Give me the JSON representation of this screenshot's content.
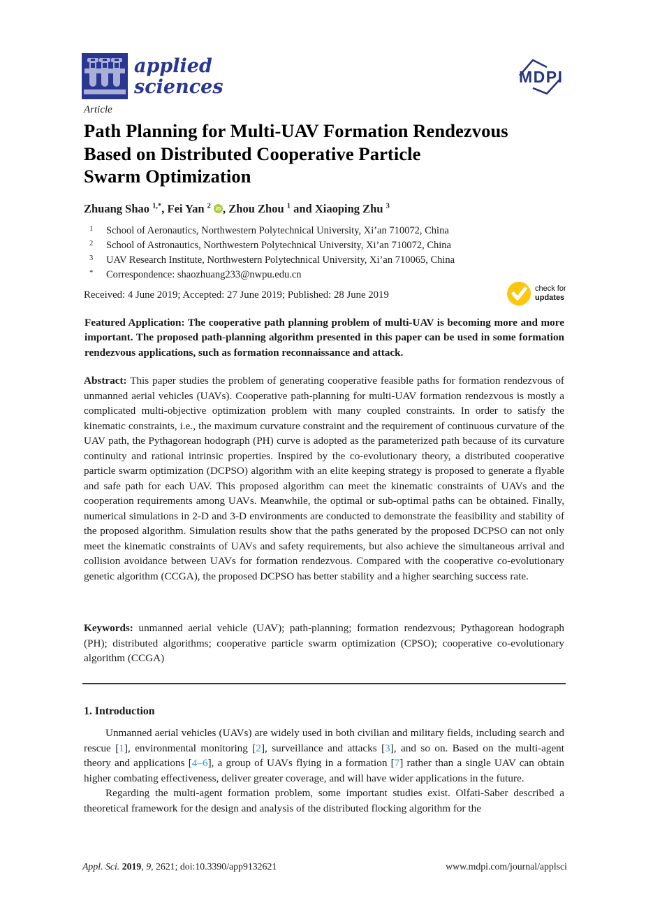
{
  "colors": {
    "brand_blue": "#2A3791",
    "logo_tube": "#A9AFD9",
    "mdpi_navy": "#26357F",
    "orcid_green": "#A6CE39",
    "badge_yellow": "#FDC70F",
    "citation_blue": "#2D9FD8"
  },
  "header": {
    "journal_name_line1": "applied",
    "journal_name_line2": "sciences",
    "mdpi_logo_text": "MDPI"
  },
  "meta": {
    "article_type": "Article",
    "title_lines": [
      "Path Planning for Multi-UAV Formation Rendezvous",
      "Based on Distributed Cooperative Particle",
      "Swarm Optimization"
    ],
    "authors": [
      {
        "name": "Zhuang Shao",
        "sup": "1,*",
        "orcid": false,
        "sep_after": ", "
      },
      {
        "name": "Fei Yan",
        "sup": "2",
        "orcid": true,
        "sep_after": ", "
      },
      {
        "name": "Zhou Zhou",
        "sup": "1",
        "orcid": false,
        "sep_after": " and "
      },
      {
        "name": "Xiaoping Zhu",
        "sup": "3",
        "orcid": false,
        "sep_after": ""
      }
    ],
    "orcid_icon_text": "iD",
    "affiliations": [
      {
        "sup": "1",
        "text": "School of Aeronautics, Northwestern Polytechnical University, Xi’an 710072, China",
        "email": ""
      },
      {
        "sup": "2",
        "text": "School of Astronautics, Northwestern Polytechnical University, Xi’an 710072, China",
        "email": ""
      },
      {
        "sup": "3",
        "text": "UAV Research Institute, Northwestern Polytechnical University, Xi’an 710065, China",
        "email": ""
      },
      {
        "sup": "*",
        "text": "Correspondence: ",
        "email": "shaozhuang233@nwpu.edu.cn"
      }
    ],
    "dates": "Received: 4 June 2019; Accepted: 27 June 2019; Published: 28 June 2019",
    "check_badge": {
      "line1": "check for",
      "line2": "updates"
    }
  },
  "featured": {
    "label": "Featured Application:",
    "text": "The cooperative path planning problem of multi-UAV is becoming more and more important. The proposed path-planning algorithm presented in this paper can be used in some formation rendezvous applications, such as formation reconnaissance and attack."
  },
  "abstract": {
    "label": "Abstract:",
    "text": "This paper studies the problem of generating cooperative feasible paths for formation rendezvous of unmanned aerial vehicles (UAVs). Cooperative path-planning for multi-UAV formation rendezvous is mostly a complicated multi-objective optimization problem with many coupled constraints. In order to satisfy the kinematic constraints, i.e., the maximum curvature constraint and the requirement of continuous curvature of the UAV path, the Pythagorean hodograph (PH) curve is adopted as the parameterized path because of its curvature continuity and rational intrinsic properties. Inspired by the co-evolutionary theory, a distributed cooperative particle swarm optimization (DCPSO) algorithm with an elite keeping strategy is proposed to generate a flyable and safe path for each UAV. This proposed algorithm can meet the kinematic constraints of UAVs and the cooperation requirements among UAVs. Meanwhile, the optimal or sub-optimal paths can be obtained. Finally, numerical simulations in 2-D and 3-D environments are conducted to demonstrate the feasibility and stability of the proposed algorithm. Simulation results show that the paths generated by the proposed DCPSO can not only meet the kinematic constraints of UAVs and safety requirements, but also achieve the simultaneous arrival and collision avoidance between UAVs for formation rendezvous. Compared with the cooperative co-evolutionary genetic algorithm (CCGA), the proposed DCPSO has better stability and a higher searching success rate."
  },
  "keywords": {
    "label": "Keywords:",
    "text": "unmanned aerial vehicle (UAV); path-planning; formation rendezvous; Pythagorean hodograph (PH); distributed algorithms; cooperative particle swarm optimization (CPSO); cooperative co-evolutionary algorithm (CCGA)"
  },
  "sections": [
    {
      "heading": "1. Introduction",
      "paragraphs": [
        {
          "segments": [
            {
              "t": "Unmanned aerial vehicles (UAVs) are widely used in both civilian and military fields, including search and rescue ["
            },
            {
              "t": "1",
              "link": true
            },
            {
              "t": "], environmental monitoring ["
            },
            {
              "t": "2",
              "link": true
            },
            {
              "t": "], surveillance and attacks ["
            },
            {
              "t": "3",
              "link": true
            },
            {
              "t": "], and so on. Based on the multi-agent theory and applications ["
            },
            {
              "t": "4–6",
              "link": true
            },
            {
              "t": "], a group of UAVs flying in a formation ["
            },
            {
              "t": "7",
              "link": true
            },
            {
              "t": "] rather than a single UAV can obtain higher combating effectiveness, deliver greater coverage, and will have wider applications in the future."
            }
          ]
        },
        {
          "segments": [
            {
              "t": "Regarding the multi-agent formation problem, some important studies exist. Olfati-Saber described a theoretical framework for the design and analysis of the distributed flocking algorithm for the"
            }
          ]
        }
      ]
    }
  ],
  "footer": {
    "left_segments": [
      {
        "t": "Appl. Sci. ",
        "style": "i"
      },
      {
        "t": "2019",
        "style": "b"
      },
      {
        "t": ", "
      },
      {
        "t": "9",
        "style": "i"
      },
      {
        "t": ", 2621; doi:10.3390/app9132621"
      }
    ],
    "right": "www.mdpi.com/journal/applsci"
  }
}
